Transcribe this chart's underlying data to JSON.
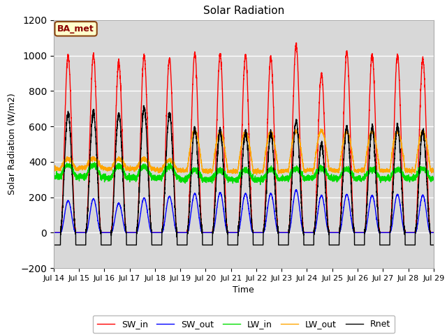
{
  "title": "Solar Radiation",
  "ylabel": "Solar Radiation (W/m2)",
  "xlabel": "Time",
  "ylim": [
    -200,
    1200
  ],
  "yticks": [
    -200,
    0,
    200,
    400,
    600,
    800,
    1000,
    1200
  ],
  "annotation": "BA_met",
  "bg_color": "#d8d8d8",
  "fig_bg": "#ffffff",
  "line_colors": {
    "SW_in": "#ff0000",
    "SW_out": "#0000ff",
    "LW_in": "#00dd00",
    "LW_out": "#ffa500",
    "Rnet": "#000000"
  },
  "legend_labels": [
    "SW_in",
    "SW_out",
    "LW_in",
    "LW_out",
    "Rnet"
  ],
  "start_day": 14,
  "end_day": 29,
  "points_per_day": 288
}
